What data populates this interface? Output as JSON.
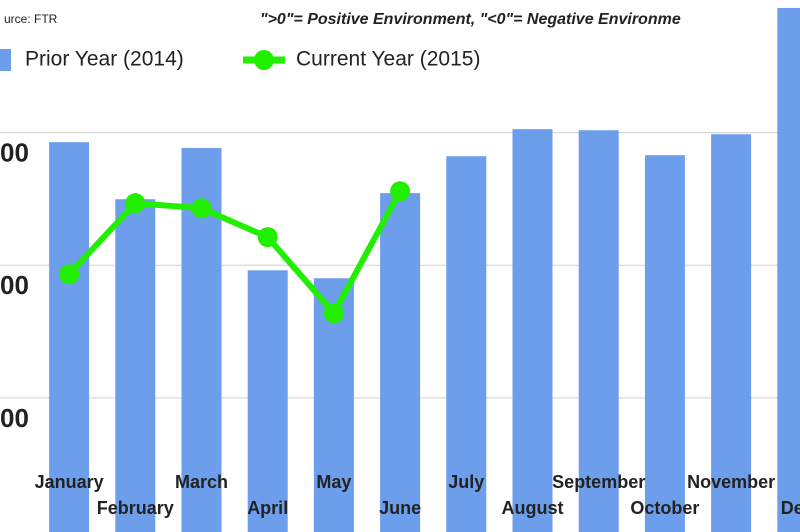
{
  "chart_data": {
    "type": "bar",
    "source": "urce: FTR",
    "annotation": "\">0\"= Positive Environment, \"<0\"= Negative Environme",
    "categories": [
      "January",
      "February",
      "March",
      "April",
      "May",
      "June",
      "July",
      "August",
      "September",
      "October",
      "November",
      "Dec"
    ],
    "series": [
      {
        "name": "Prior Year (2014)",
        "type": "bar",
        "color": "#6d9eeb",
        "values": [
          14.64,
          12.49,
          14.42,
          9.81,
          9.51,
          12.72,
          14.11,
          15.13,
          15.09,
          14.15,
          14.94,
          19.7
        ]
      },
      {
        "name": "Current Year (2015)",
        "type": "line",
        "color": "#22ee00",
        "values": [
          9.66,
          12.34,
          12.15,
          11.06,
          8.19,
          12.79,
          null,
          null,
          null,
          null,
          null,
          null
        ]
      }
    ],
    "ylim": [
      0,
      20
    ],
    "yticks": [
      {
        "value": 5,
        "label": "00"
      },
      {
        "value": 10,
        "label": "00"
      },
      {
        "value": 15,
        "label": "00"
      }
    ],
    "grid": true
  }
}
